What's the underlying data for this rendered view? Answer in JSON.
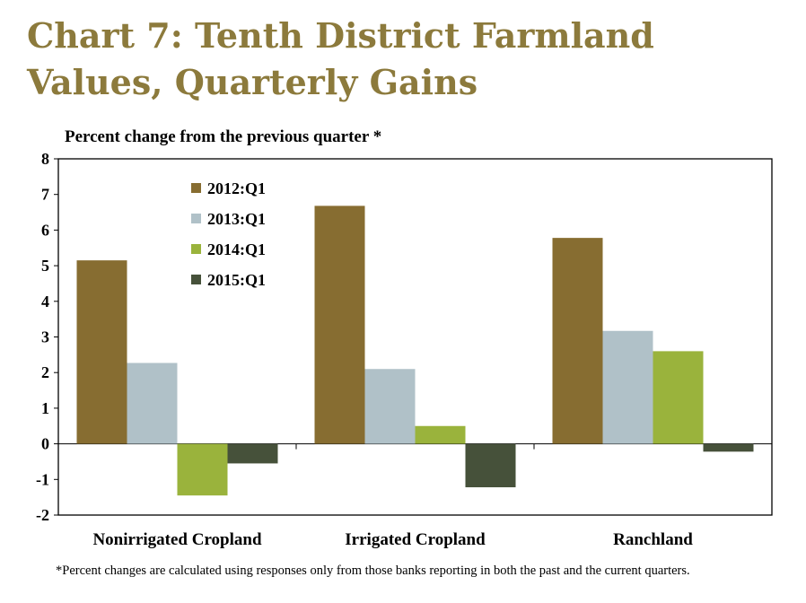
{
  "title": "Chart 7: Tenth District Farmland Values, Quarterly Gains",
  "footnote": "*Percent changes are calculated using responses only from those banks reporting in both the past and the current quarters.",
  "colors": {
    "title": "#8c7a3c",
    "series": [
      "#876d31",
      "#b0c1c8",
      "#9ab33c",
      "#46513a"
    ]
  },
  "chart_data": {
    "type": "bar",
    "ylabel": "Percent change from the previous quarter *",
    "categories": [
      "Nonirrigated Cropland",
      "Irrigated Cropland",
      "Ranchland"
    ],
    "series": [
      {
        "name": "2012:Q1",
        "values": [
          5.15,
          6.68,
          5.78
        ]
      },
      {
        "name": "2013:Q1",
        "values": [
          2.27,
          2.1,
          3.17
        ]
      },
      {
        "name": "2014:Q1",
        "values": [
          -1.45,
          0.5,
          2.6
        ]
      },
      {
        "name": "2015:Q1",
        "values": [
          -0.55,
          -1.22,
          -0.22
        ]
      }
    ],
    "ylim": [
      -2,
      8
    ],
    "yticks": [
      -2,
      -1,
      0,
      1,
      2,
      3,
      4,
      5,
      6,
      7,
      8
    ],
    "legend": "top-left inside",
    "grid": false
  }
}
